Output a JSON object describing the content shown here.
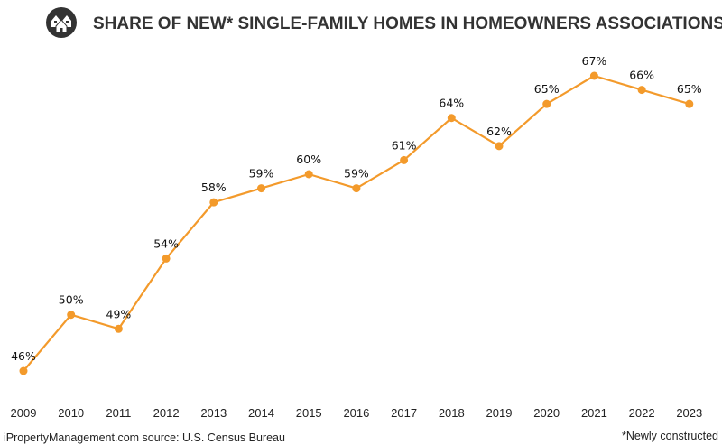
{
  "title": "SHARE OF NEW* SINGLE-FAMILY HOMES IN HOMEOWNERS ASSOCIATIONS",
  "icon": "houses-icon",
  "footer": {
    "source": "iPropertyManagement.com source: U.S. Census Bureau",
    "note": "*Newly constructed"
  },
  "colors": {
    "line": "#F39A2B",
    "title": "#333333",
    "icon": "#333333"
  },
  "chart_data": {
    "type": "line",
    "categories": [
      "2009",
      "2010",
      "2011",
      "2012",
      "2013",
      "2014",
      "2015",
      "2016",
      "2017",
      "2018",
      "2019",
      "2020",
      "2021",
      "2022",
      "2023"
    ],
    "values": [
      46,
      50,
      49,
      54,
      58,
      59,
      60,
      59,
      61,
      64,
      62,
      65,
      67,
      66,
      65
    ],
    "value_suffix": "%",
    "grid": false,
    "legend": "none"
  }
}
